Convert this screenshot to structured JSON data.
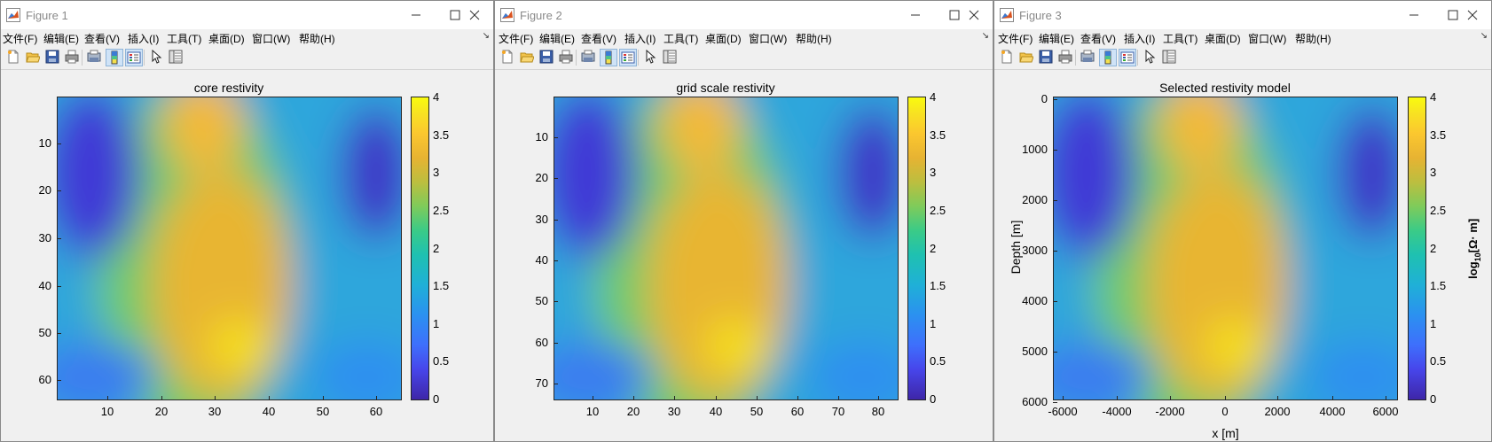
{
  "figures": [
    {
      "title": "Figure 1",
      "menu": [
        "文件(F)",
        "编辑(E)",
        "查看(V)",
        "插入(I)",
        "工具(T)",
        "桌面(D)",
        "窗口(W)",
        "帮助(H)"
      ],
      "axes_title": "core restivity",
      "xlabel": "",
      "ylabel": "",
      "x_ticks": [
        "10",
        "20",
        "30",
        "40",
        "50",
        "60"
      ],
      "y_ticks": [
        "10",
        "20",
        "30",
        "40",
        "50",
        "60"
      ],
      "colorbar_ticks": [
        "0",
        "0.5",
        "1",
        "1.5",
        "2",
        "2.5",
        "3",
        "3.5",
        "4"
      ],
      "colorbar_label": ""
    },
    {
      "title": "Figure 2",
      "menu": [
        "文件(F)",
        "编辑(E)",
        "查看(V)",
        "插入(I)",
        "工具(T)",
        "桌面(D)",
        "窗口(W)",
        "帮助(H)"
      ],
      "axes_title": "grid scale restivity",
      "xlabel": "",
      "ylabel": "",
      "x_ticks": [
        "10",
        "20",
        "30",
        "40",
        "50",
        "60",
        "70",
        "80"
      ],
      "y_ticks": [
        "10",
        "20",
        "30",
        "40",
        "50",
        "60",
        "70"
      ],
      "colorbar_ticks": [
        "0",
        "0.5",
        "1",
        "1.5",
        "2",
        "2.5",
        "3",
        "3.5",
        "4"
      ],
      "colorbar_label": ""
    },
    {
      "title": "Figure 3",
      "menu": [
        "文件(F)",
        "编辑(E)",
        "查看(V)",
        "插入(I)",
        "工具(T)",
        "桌面(D)",
        "窗口(W)",
        "帮助(H)"
      ],
      "axes_title": "Selected restivity model",
      "xlabel": "x [m]",
      "ylabel": "Depth [m]",
      "x_ticks": [
        "-6000",
        "-4000",
        "-2000",
        "0",
        "2000",
        "4000",
        "6000"
      ],
      "y_ticks": [
        "0",
        "1000",
        "2000",
        "3000",
        "4000",
        "5000",
        "6000"
      ],
      "colorbar_ticks": [
        "0",
        "0.5",
        "1",
        "1.5",
        "2",
        "2.5",
        "3",
        "3.5",
        "4"
      ],
      "colorbar_label_prefix": "log",
      "colorbar_label_sub": "10",
      "colorbar_label_suffix": "[Ω· m]"
    }
  ],
  "toolbar_icons": [
    "new-file-icon",
    "open-folder-icon",
    "save-icon",
    "print-icon",
    "link-print-icon",
    "colorbar-icon",
    "legend-icon",
    "pointer-icon",
    "property-editor-icon"
  ],
  "menu_overflow_glyph": "↘",
  "colors": {
    "title_text": "#8a8a8a",
    "window_bg": "#f0f0f0",
    "colormap": "parula",
    "colorbar_range": [
      0,
      4
    ]
  }
}
